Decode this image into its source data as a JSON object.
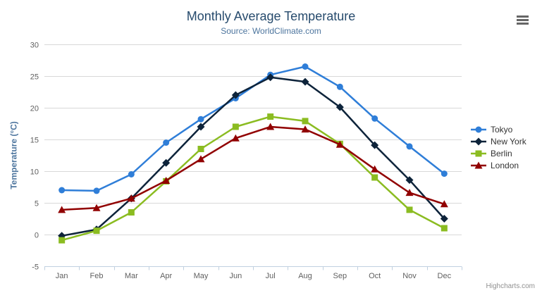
{
  "chart": {
    "title": "Monthly Average Temperature",
    "subtitle": "Source: WorldClimate.com",
    "credit": "Highcharts.com",
    "menu_icon": "hamburger-icon"
  },
  "chart_data": {
    "type": "line",
    "title": "Monthly Average Temperature",
    "subtitle": "Source: WorldClimate.com",
    "categories": [
      "Jan",
      "Feb",
      "Mar",
      "Apr",
      "May",
      "Jun",
      "Jul",
      "Aug",
      "Sep",
      "Oct",
      "Nov",
      "Dec"
    ],
    "series": [
      {
        "name": "Tokyo",
        "color": "#2f7ed8",
        "marker": "circle",
        "values": [
          7.0,
          6.9,
          9.5,
          14.5,
          18.2,
          21.5,
          25.2,
          26.5,
          23.3,
          18.3,
          13.9,
          9.6
        ]
      },
      {
        "name": "New York",
        "color": "#0d233a",
        "marker": "diamond",
        "values": [
          -0.2,
          0.8,
          5.7,
          11.3,
          17.0,
          22.0,
          24.8,
          24.1,
          20.1,
          14.1,
          8.6,
          2.5
        ]
      },
      {
        "name": "Berlin",
        "color": "#8bbc21",
        "marker": "square",
        "values": [
          -0.9,
          0.6,
          3.5,
          8.4,
          13.5,
          17.0,
          18.6,
          17.9,
          14.3,
          9.0,
          3.9,
          1.0
        ]
      },
      {
        "name": "London",
        "color": "#910000",
        "marker": "triangle",
        "values": [
          3.9,
          4.2,
          5.7,
          8.5,
          11.9,
          15.2,
          17.0,
          16.6,
          14.2,
          10.3,
          6.6,
          4.8
        ]
      }
    ],
    "xlabel": "",
    "ylabel": "Temperature (°C)",
    "ylim": [
      -5,
      30
    ],
    "ytick_step": 5,
    "grid": true,
    "legend_position": "right",
    "colors": {
      "gridline": "#d8d8d8",
      "axis_line": "#c0d0e0",
      "tick_label": "#606060",
      "legend_text": "#333333",
      "title": "#274b6d",
      "subtitle": "#4d759e",
      "yaxis_title": "#4d759e"
    }
  }
}
